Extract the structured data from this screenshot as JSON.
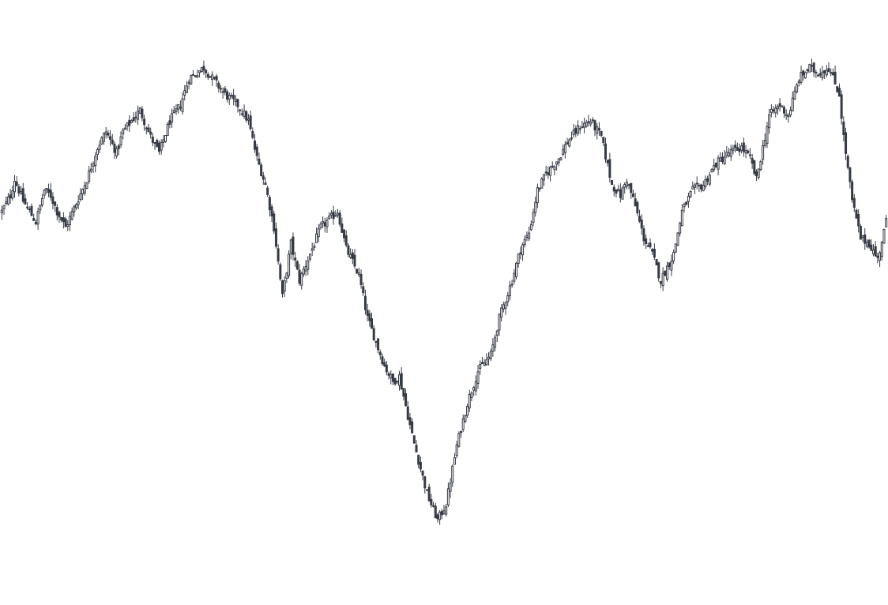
{
  "chart_data": {
    "type": "candlestick",
    "title": "",
    "xlabel": "",
    "ylabel": "",
    "axes_visible": false,
    "grid": false,
    "legend": "none",
    "colors": {
      "up_fill": "#ffffff",
      "down_fill": "#363a45",
      "line": "#363a45",
      "background": "#ffffff"
    },
    "ylim": [
      0,
      100
    ],
    "close_path": [
      [
        0,
        68
      ],
      [
        4,
        71
      ],
      [
        6,
        74
      ],
      [
        10,
        70
      ],
      [
        16,
        66
      ],
      [
        20,
        72
      ],
      [
        23,
        71
      ],
      [
        26,
        68
      ],
      [
        30,
        65
      ],
      [
        40,
        74
      ],
      [
        45,
        80
      ],
      [
        49,
        83
      ],
      [
        54,
        79
      ],
      [
        57,
        83
      ],
      [
        61,
        85
      ],
      [
        65,
        87
      ],
      [
        70,
        82
      ],
      [
        74,
        79
      ],
      [
        79,
        85
      ],
      [
        84,
        88
      ],
      [
        88,
        93
      ],
      [
        95,
        95
      ],
      [
        105,
        90
      ],
      [
        111,
        88
      ],
      [
        116,
        85
      ],
      [
        120,
        78
      ],
      [
        124,
        73
      ],
      [
        128,
        65
      ],
      [
        132,
        52
      ],
      [
        136,
        62
      ],
      [
        140,
        55
      ],
      [
        150,
        65
      ],
      [
        158,
        68
      ],
      [
        162,
        61
      ],
      [
        168,
        56
      ],
      [
        172,
        48
      ],
      [
        180,
        39
      ],
      [
        184,
        36
      ],
      [
        187,
        37
      ],
      [
        193,
        26
      ],
      [
        200,
        15
      ],
      [
        205,
        10
      ],
      [
        209,
        13
      ],
      [
        214,
        24
      ],
      [
        219,
        32
      ],
      [
        224,
        38
      ],
      [
        230,
        41
      ],
      [
        234,
        48
      ],
      [
        240,
        55
      ],
      [
        244,
        61
      ],
      [
        248,
        64
      ],
      [
        252,
        72
      ],
      [
        256,
        75
      ],
      [
        262,
        78
      ],
      [
        266,
        81
      ],
      [
        272,
        84
      ],
      [
        277,
        85
      ],
      [
        282,
        82
      ],
      [
        287,
        73
      ],
      [
        291,
        71
      ],
      [
        294,
        74
      ],
      [
        298,
        69
      ],
      [
        302,
        63
      ],
      [
        306,
        60
      ],
      [
        310,
        55
      ],
      [
        316,
        60
      ],
      [
        320,
        68
      ],
      [
        325,
        72
      ],
      [
        330,
        73
      ],
      [
        336,
        77
      ],
      [
        342,
        79
      ],
      [
        348,
        80
      ],
      [
        352,
        78
      ],
      [
        355,
        74
      ],
      [
        361,
        86
      ],
      [
        366,
        88
      ],
      [
        370,
        86
      ],
      [
        375,
        93
      ],
      [
        380,
        95
      ],
      [
        384,
        94
      ],
      [
        389,
        95
      ],
      [
        394,
        90
      ],
      [
        396,
        82
      ],
      [
        400,
        70
      ],
      [
        404,
        63
      ],
      [
        408,
        62
      ],
      [
        412,
        59
      ],
      [
        416,
        66
      ]
    ],
    "candle_count": 417
  }
}
